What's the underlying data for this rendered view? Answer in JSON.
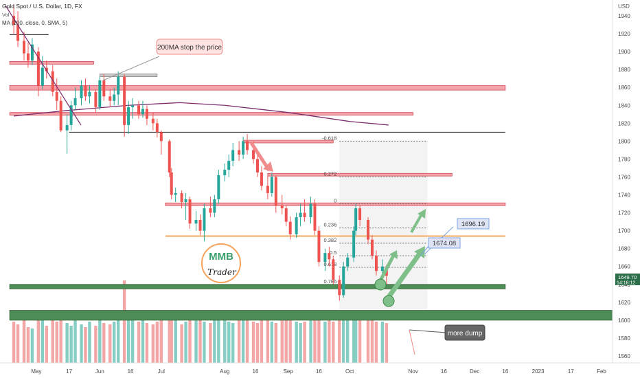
{
  "header": {
    "symbol_line": "Gold Spot / U.S. Dollar, 1D, FX",
    "vol_label": "Vol",
    "ma_label": "MA (200, close, 0, SMA, 5)"
  },
  "price_scale": {
    "currency": "USD",
    "current_price": "1649.70",
    "countdown": "14:16:12"
  },
  "annotations": {
    "ma_callout": "200MA stop the price",
    "target_1": "1696.19",
    "target_2": "1674.08",
    "dump_note": "more dump"
  },
  "logo": {
    "letters": "MMB",
    "word": "Trader"
  },
  "colors": {
    "up": "#26a69a",
    "down": "#ef5350",
    "zone_red": "#f5a3aa",
    "zone_green": "#4e8c55",
    "ma_line": "#7b2d6e",
    "fib_line": "#6b6b6b",
    "arrow_green": "#7fbf8a",
    "arrow_red": "#f28b8b",
    "orange_line": "#f0a860",
    "callout_bg": "#dfe4f5"
  },
  "chart_data": {
    "type": "candlestick",
    "title": "Gold Spot / U.S. Dollar, 1D, FX",
    "ylim": [
      1550,
      1955
    ],
    "y_ticks": [
      1560,
      1580,
      1600,
      1620,
      1640,
      1660,
      1680,
      1700,
      1720,
      1740,
      1760,
      1780,
      1800,
      1820,
      1840,
      1860,
      1880,
      1900,
      1920,
      1940
    ],
    "x_ticks": [
      {
        "date": "2022-05-01",
        "label": "May"
      },
      {
        "date": "2022-05-17",
        "label": "17"
      },
      {
        "date": "2022-06-01",
        "label": "Jun"
      },
      {
        "date": "2022-06-16",
        "label": "16"
      },
      {
        "date": "2022-07-01",
        "label": "Jul"
      },
      {
        "date": "2022-08-01",
        "label": "Aug"
      },
      {
        "date": "2022-08-16",
        "label": "16"
      },
      {
        "date": "2022-09-01",
        "label": "Sep"
      },
      {
        "date": "2022-09-16",
        "label": "16"
      },
      {
        "date": "2022-10-01",
        "label": "Oct"
      },
      {
        "date": "2022-11-01",
        "label": "Nov"
      },
      {
        "date": "2022-11-16",
        "label": "16"
      },
      {
        "date": "2022-12-01",
        "label": "Dec"
      },
      {
        "date": "2022-12-16",
        "label": "16"
      },
      {
        "date": "2023-01-01",
        "label": "2023"
      },
      {
        "date": "2023-01-17",
        "label": "17"
      },
      {
        "date": "2023-02-01",
        "label": "Feb"
      }
    ],
    "series": [
      {
        "name": "Gold Spot / U.S. Dollar",
        "points": [
          {
            "x": "2022-04-20",
            "o": 1940,
            "h": 1953,
            "l": 1920,
            "c": 1930
          },
          {
            "x": "2022-04-22",
            "o": 1930,
            "h": 1945,
            "l": 1905,
            "c": 1912
          },
          {
            "x": "2022-04-25",
            "o": 1912,
            "h": 1922,
            "l": 1890,
            "c": 1898
          },
          {
            "x": "2022-04-27",
            "o": 1898,
            "h": 1910,
            "l": 1882,
            "c": 1890
          },
          {
            "x": "2022-04-29",
            "o": 1890,
            "h": 1915,
            "l": 1885,
            "c": 1908
          },
          {
            "x": "2022-05-02",
            "o": 1900,
            "h": 1905,
            "l": 1850,
            "c": 1862
          },
          {
            "x": "2022-05-04",
            "o": 1862,
            "h": 1895,
            "l": 1858,
            "c": 1882
          },
          {
            "x": "2022-05-06",
            "o": 1882,
            "h": 1890,
            "l": 1870,
            "c": 1878
          },
          {
            "x": "2022-05-09",
            "o": 1878,
            "h": 1885,
            "l": 1850,
            "c": 1855
          },
          {
            "x": "2022-05-11",
            "o": 1855,
            "h": 1870,
            "l": 1835,
            "c": 1845
          },
          {
            "x": "2022-05-13",
            "o": 1845,
            "h": 1850,
            "l": 1810,
            "c": 1812
          },
          {
            "x": "2022-05-16",
            "o": 1812,
            "h": 1830,
            "l": 1786,
            "c": 1818
          },
          {
            "x": "2022-05-18",
            "o": 1818,
            "h": 1845,
            "l": 1812,
            "c": 1840
          },
          {
            "x": "2022-05-20",
            "o": 1840,
            "h": 1860,
            "l": 1835,
            "c": 1848
          },
          {
            "x": "2022-05-23",
            "o": 1848,
            "h": 1868,
            "l": 1840,
            "c": 1862
          },
          {
            "x": "2022-05-25",
            "o": 1862,
            "h": 1870,
            "l": 1845,
            "c": 1850
          },
          {
            "x": "2022-05-27",
            "o": 1850,
            "h": 1862,
            "l": 1842,
            "c": 1855
          },
          {
            "x": "2022-05-30",
            "o": 1855,
            "h": 1858,
            "l": 1832,
            "c": 1838
          },
          {
            "x": "2022-06-01",
            "o": 1838,
            "h": 1872,
            "l": 1835,
            "c": 1868
          },
          {
            "x": "2022-06-03",
            "o": 1868,
            "h": 1875,
            "l": 1845,
            "c": 1850
          },
          {
            "x": "2022-06-06",
            "o": 1850,
            "h": 1858,
            "l": 1838,
            "c": 1845
          },
          {
            "x": "2022-06-08",
            "o": 1845,
            "h": 1860,
            "l": 1840,
            "c": 1852
          },
          {
            "x": "2022-06-10",
            "o": 1852,
            "h": 1878,
            "l": 1840,
            "c": 1872
          },
          {
            "x": "2022-06-13",
            "o": 1872,
            "h": 1875,
            "l": 1805,
            "c": 1818
          },
          {
            "x": "2022-06-15",
            "o": 1818,
            "h": 1845,
            "l": 1808,
            "c": 1838
          },
          {
            "x": "2022-06-17",
            "o": 1838,
            "h": 1848,
            "l": 1825,
            "c": 1840
          },
          {
            "x": "2022-06-20",
            "o": 1840,
            "h": 1845,
            "l": 1825,
            "c": 1830
          },
          {
            "x": "2022-06-22",
            "o": 1830,
            "h": 1845,
            "l": 1826,
            "c": 1836
          },
          {
            "x": "2022-06-24",
            "o": 1836,
            "h": 1840,
            "l": 1818,
            "c": 1825
          },
          {
            "x": "2022-06-27",
            "o": 1825,
            "h": 1832,
            "l": 1812,
            "c": 1820
          },
          {
            "x": "2022-06-29",
            "o": 1820,
            "h": 1825,
            "l": 1804,
            "c": 1810
          },
          {
            "x": "2022-07-01",
            "o": 1810,
            "h": 1812,
            "l": 1785,
            "c": 1800
          },
          {
            "x": "2022-07-05",
            "o": 1800,
            "h": 1802,
            "l": 1760,
            "c": 1765
          },
          {
            "x": "2022-07-06",
            "o": 1765,
            "h": 1770,
            "l": 1735,
            "c": 1740
          },
          {
            "x": "2022-07-08",
            "o": 1740,
            "h": 1748,
            "l": 1732,
            "c": 1742
          },
          {
            "x": "2022-07-11",
            "o": 1742,
            "h": 1745,
            "l": 1725,
            "c": 1732
          },
          {
            "x": "2022-07-13",
            "o": 1732,
            "h": 1742,
            "l": 1712,
            "c": 1735
          },
          {
            "x": "2022-07-15",
            "o": 1735,
            "h": 1738,
            "l": 1702,
            "c": 1708
          },
          {
            "x": "2022-07-18",
            "o": 1708,
            "h": 1722,
            "l": 1700,
            "c": 1712
          },
          {
            "x": "2022-07-20",
            "o": 1712,
            "h": 1718,
            "l": 1695,
            "c": 1700
          },
          {
            "x": "2022-07-22",
            "o": 1700,
            "h": 1730,
            "l": 1688,
            "c": 1725
          },
          {
            "x": "2022-07-25",
            "o": 1725,
            "h": 1738,
            "l": 1715,
            "c": 1720
          },
          {
            "x": "2022-07-27",
            "o": 1720,
            "h": 1740,
            "l": 1715,
            "c": 1735
          },
          {
            "x": "2022-07-29",
            "o": 1735,
            "h": 1768,
            "l": 1730,
            "c": 1762
          },
          {
            "x": "2022-08-01",
            "o": 1762,
            "h": 1775,
            "l": 1755,
            "c": 1768
          },
          {
            "x": "2022-08-03",
            "o": 1768,
            "h": 1785,
            "l": 1760,
            "c": 1778
          },
          {
            "x": "2022-08-05",
            "o": 1778,
            "h": 1798,
            "l": 1772,
            "c": 1790
          },
          {
            "x": "2022-08-08",
            "o": 1790,
            "h": 1800,
            "l": 1778,
            "c": 1785
          },
          {
            "x": "2022-08-10",
            "o": 1785,
            "h": 1805,
            "l": 1780,
            "c": 1800
          },
          {
            "x": "2022-08-12",
            "o": 1800,
            "h": 1808,
            "l": 1785,
            "c": 1790
          },
          {
            "x": "2022-08-15",
            "o": 1790,
            "h": 1800,
            "l": 1775,
            "c": 1780
          },
          {
            "x": "2022-08-17",
            "o": 1780,
            "h": 1790,
            "l": 1760,
            "c": 1765
          },
          {
            "x": "2022-08-19",
            "o": 1765,
            "h": 1772,
            "l": 1745,
            "c": 1750
          },
          {
            "x": "2022-08-22",
            "o": 1750,
            "h": 1762,
            "l": 1735,
            "c": 1742
          },
          {
            "x": "2022-08-24",
            "o": 1742,
            "h": 1765,
            "l": 1738,
            "c": 1760
          },
          {
            "x": "2022-08-26",
            "o": 1760,
            "h": 1762,
            "l": 1720,
            "c": 1728
          },
          {
            "x": "2022-08-29",
            "o": 1728,
            "h": 1740,
            "l": 1718,
            "c": 1725
          },
          {
            "x": "2022-08-31",
            "o": 1725,
            "h": 1728,
            "l": 1705,
            "c": 1710
          },
          {
            "x": "2022-09-02",
            "o": 1710,
            "h": 1716,
            "l": 1690,
            "c": 1696
          },
          {
            "x": "2022-09-05",
            "o": 1696,
            "h": 1720,
            "l": 1692,
            "c": 1715
          },
          {
            "x": "2022-09-07",
            "o": 1715,
            "h": 1730,
            "l": 1705,
            "c": 1720
          },
          {
            "x": "2022-09-09",
            "o": 1720,
            "h": 1735,
            "l": 1710,
            "c": 1715
          },
          {
            "x": "2022-09-12",
            "o": 1715,
            "h": 1738,
            "l": 1708,
            "c": 1730
          },
          {
            "x": "2022-09-14",
            "o": 1730,
            "h": 1735,
            "l": 1695,
            "c": 1700
          },
          {
            "x": "2022-09-16",
            "o": 1700,
            "h": 1705,
            "l": 1660,
            "c": 1665
          },
          {
            "x": "2022-09-19",
            "o": 1665,
            "h": 1680,
            "l": 1655,
            "c": 1675
          },
          {
            "x": "2022-09-21",
            "o": 1675,
            "h": 1682,
            "l": 1660,
            "c": 1668
          },
          {
            "x": "2022-09-23",
            "o": 1668,
            "h": 1672,
            "l": 1640,
            "c": 1645
          },
          {
            "x": "2022-09-26",
            "o": 1645,
            "h": 1650,
            "l": 1622,
            "c": 1628
          },
          {
            "x": "2022-09-28",
            "o": 1628,
            "h": 1665,
            "l": 1625,
            "c": 1660
          },
          {
            "x": "2022-09-30",
            "o": 1660,
            "h": 1675,
            "l": 1655,
            "c": 1670
          },
          {
            "x": "2022-10-03",
            "o": 1670,
            "h": 1705,
            "l": 1665,
            "c": 1700
          },
          {
            "x": "2022-10-04",
            "o": 1700,
            "h": 1730,
            "l": 1695,
            "c": 1725
          },
          {
            "x": "2022-10-06",
            "o": 1725,
            "h": 1728,
            "l": 1705,
            "c": 1712
          },
          {
            "x": "2022-10-10",
            "o": 1712,
            "h": 1715,
            "l": 1685,
            "c": 1690
          },
          {
            "x": "2022-10-12",
            "o": 1690,
            "h": 1695,
            "l": 1668,
            "c": 1672
          },
          {
            "x": "2022-10-14",
            "o": 1672,
            "h": 1678,
            "l": 1650,
            "c": 1655
          },
          {
            "x": "2022-10-17",
            "o": 1655,
            "h": 1668,
            "l": 1648,
            "c": 1660
          },
          {
            "x": "2022-10-19",
            "o": 1660,
            "h": 1662,
            "l": 1640,
            "c": 1649.7
          }
        ]
      },
      {
        "name": "MA (200, close, 0, SMA, 5)",
        "points": [
          {
            "x": "2022-04-20",
            "y": 1828
          },
          {
            "x": "2022-05-15",
            "y": 1834
          },
          {
            "x": "2022-06-15",
            "y": 1840
          },
          {
            "x": "2022-07-10",
            "y": 1843
          },
          {
            "x": "2022-08-01",
            "y": 1840
          },
          {
            "x": "2022-09-01",
            "y": 1832
          },
          {
            "x": "2022-10-01",
            "y": 1822
          },
          {
            "x": "2022-10-20",
            "y": 1818
          }
        ]
      }
    ],
    "volume": [
      300,
      280,
      320,
      260,
      250,
      330,
      310,
      270,
      340,
      300,
      360,
      290,
      270,
      310,
      280,
      260,
      300,
      270,
      320,
      290,
      280,
      300,
      310,
      600,
      380,
      330,
      300,
      310,
      290,
      280,
      300,
      330,
      310,
      320,
      340,
      280,
      300,
      350,
      310,
      330,
      300,
      290,
      320,
      340,
      310,
      300,
      290,
      320,
      330,
      310,
      300,
      290,
      320,
      310,
      300,
      290,
      330,
      320,
      310,
      300,
      290,
      300,
      320,
      330,
      310,
      300,
      340,
      300,
      320,
      330,
      360,
      340,
      380,
      350,
      340,
      320,
      300,
      300,
      290,
      80
    ],
    "fib_levels": [
      {
        "label": "-0.618",
        "value": 1800
      },
      {
        "label": "0.272",
        "value": 1760
      },
      {
        "label": "0",
        "value": 1730
      },
      {
        "label": "0.236",
        "value": 1703
      },
      {
        "label": "0.382",
        "value": 1686
      },
      {
        "label": "0.5",
        "value": 1672
      },
      {
        "label": "0.618",
        "value": 1659
      },
      {
        "label": "0.786",
        "value": 1640
      }
    ],
    "zones": [
      {
        "color": "red",
        "y1": 1857,
        "y2": 1862,
        "x1": "2022-04-18",
        "x2": "2022-12-16"
      },
      {
        "color": "red",
        "y1": 1829,
        "y2": 1832,
        "x1": "2022-04-18",
        "x2": "2022-11-01"
      },
      {
        "color": "red",
        "y1": 1886,
        "y2": 1889,
        "x1": "2022-04-18",
        "x2": "2022-05-29"
      },
      {
        "color": "grey",
        "y1": 1872,
        "y2": 1875,
        "x1": "2022-06-01",
        "x2": "2022-06-29"
      },
      {
        "color": "red",
        "y1": 1761,
        "y2": 1764,
        "x1": "2022-08-22",
        "x2": "2022-11-20"
      },
      {
        "color": "red",
        "y1": 1728,
        "y2": 1731,
        "x1": "2022-07-03",
        "x2": "2022-12-16"
      },
      {
        "color": "red",
        "y1": 1798,
        "y2": 1801,
        "x1": "2022-08-10",
        "x2": "2022-09-23"
      },
      {
        "color": "green",
        "y1": 1635,
        "y2": 1640,
        "x1": "2022-04-18",
        "x2": "2022-12-16"
      },
      {
        "color": "green",
        "y1": 1600,
        "y2": 1611,
        "x1": "2022-04-18",
        "x2": "2023-02-14"
      }
    ],
    "horizontal_lines": [
      {
        "value": 1810,
        "x1": "2022-05-17",
        "x2": "2022-12-16",
        "color": "black"
      },
      {
        "value": 1919,
        "x1": "2022-04-18",
        "x2": "2022-05-07",
        "color": "black"
      },
      {
        "value": 1694,
        "x1": "2022-07-03",
        "x2": "2022-12-16",
        "color": "orange"
      }
    ]
  }
}
